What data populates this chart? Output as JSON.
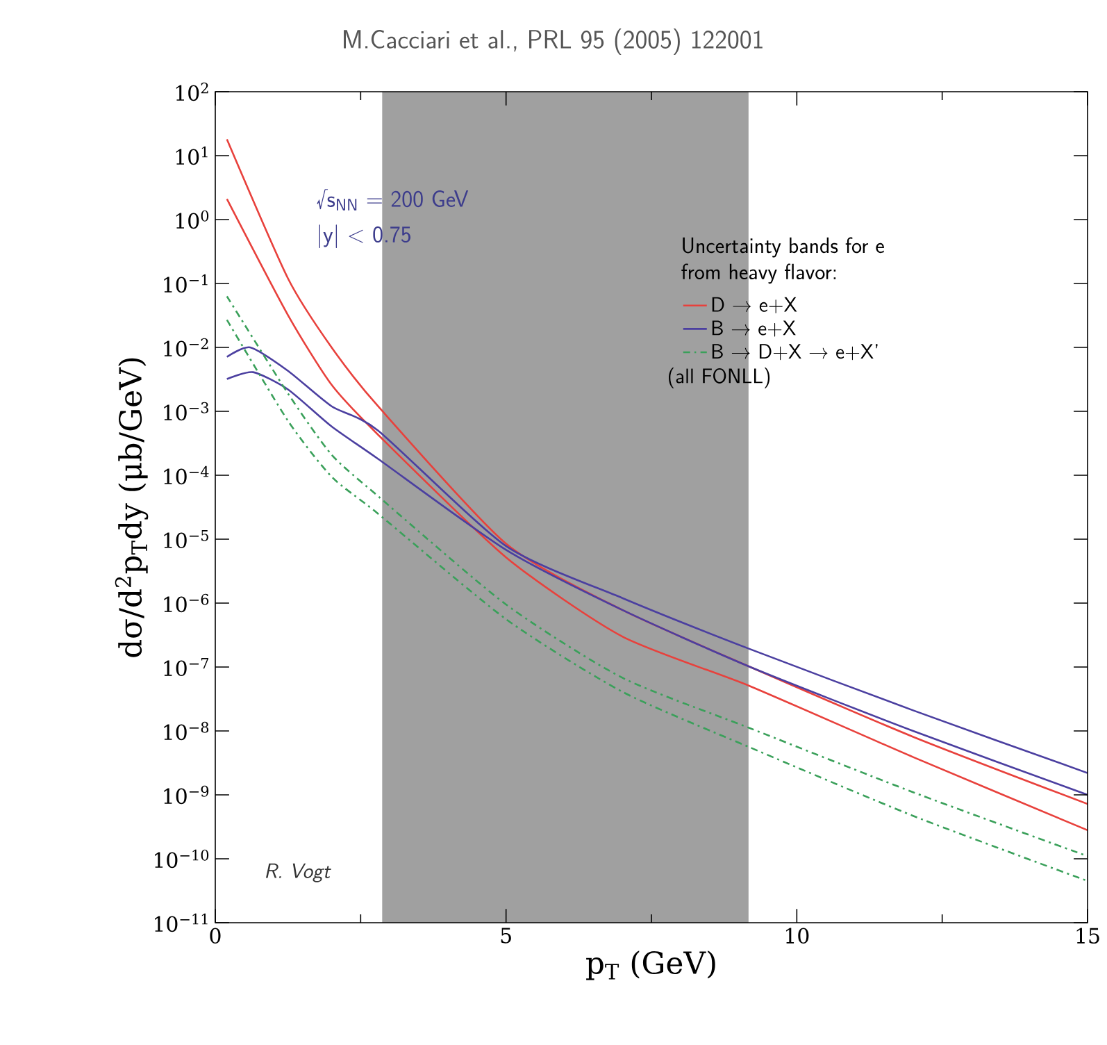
{
  "chart_data": {
    "type": "line",
    "title": "M.Cacciari et al., PRL 95 (2005) 122001",
    "xlabel": "p$_{T}$ (GeV)",
    "ylabel": "dσ/d$^{2}$p$_{T}$dy (μb/GeV)",
    "legend_title": "Uncertainty bands for e from heavy flavor:",
    "annotations": [
      "√s$_{NN}$ = 200 GeV",
      "|y| < 0.75",
      "R. Vogt",
      "(all FONLL)"
    ],
    "log": "y",
    "legend": "top right",
    "xlim": [
      0,
      15
    ],
    "xticks": [
      0,
      5,
      10,
      15
    ],
    "ylim": [
      1e-11,
      100
    ],
    "yticks": [
      {
        "value": 100,
        "label": "10$^{2}$"
      },
      {
        "value": 10,
        "label": "10$^{1}$"
      },
      {
        "value": 1,
        "label": "10$^{0}$"
      },
      {
        "value": 0.1,
        "label": "10$^{−1}$"
      },
      {
        "value": 0.01,
        "label": "10$^{−2}$"
      },
      {
        "value": 0.001,
        "label": "10$^{−3}$"
      },
      {
        "value": 0.0001,
        "label": "10$^{−4}$"
      },
      {
        "value": 1e-05,
        "label": "10$^{−5}$"
      },
      {
        "value": 1e-06,
        "label": "10$^{−6}$"
      },
      {
        "value": 1e-07,
        "label": "10$^{−7}$"
      },
      {
        "value": 1e-08,
        "label": "10$^{−8}$"
      },
      {
        "value": 1e-09,
        "label": "10$^{−9}$"
      },
      {
        "value": 1e-10,
        "label": "10$^{−10}$"
      },
      {
        "value": 1e-11,
        "label": "10$^{−11}$"
      }
    ],
    "bands": [
      {
        "axis": "x",
        "from": 2.87,
        "to": 9.17,
        "color": "#a0a0a0"
      }
    ],
    "series": [
      {
        "name": "D → e+X",
        "color": "#e8413c",
        "line_style": "solid",
        "x": [
          0.2,
          1.25,
          2,
          2.8,
          5,
          7,
          9.2,
          12,
          15
        ],
        "values": [
          18,
          0.12,
          0.01,
          0.0012,
          8.5e-06,
          7.8e-07,
          1e-07,
          8.1e-09,
          7.2e-10
        ]
      },
      {
        "color": "#e8413c",
        "line_style": "solid",
        "x": [
          0.2,
          1.25,
          2,
          2.8,
          5,
          7,
          9.2,
          12,
          15
        ],
        "values": [
          2.1,
          0.032,
          0.0026,
          0.00043,
          5.2e-06,
          3e-07,
          5e-08,
          3.9e-09,
          2.8e-10
        ]
      },
      {
        "name": "B → e+X",
        "color": "#4b3fa0",
        "line_style": "solid",
        "x": [
          0.2,
          0.6,
          1.25,
          2,
          2.8,
          5,
          7,
          9.2,
          12,
          15
        ],
        "values": [
          0.0071,
          0.01,
          0.0043,
          0.0012,
          0.0005,
          7.8e-06,
          1.2e-06,
          1.9e-07,
          2.1e-08,
          2.2e-09
        ]
      },
      {
        "color": "#4b3fa0",
        "line_style": "solid",
        "x": [
          0.2,
          0.65,
          1.25,
          2,
          2.8,
          5,
          7,
          9.2,
          12,
          15
        ],
        "values": [
          0.0032,
          0.0041,
          0.0022,
          0.00058,
          0.00018,
          6.8e-06,
          7.8e-07,
          1e-07,
          1e-08,
          1e-09
        ]
      },
      {
        "name": "B → D+X → e+X’",
        "color": "#3aa05a",
        "line_style": "dashdot",
        "x": [
          0.2,
          1.25,
          2,
          2.8,
          5,
          7,
          9.2,
          12,
          15
        ],
        "values": [
          0.063,
          0.0019,
          0.00021,
          4.7e-05,
          9.5e-07,
          6.8e-08,
          1.1e-08,
          1.1e-09,
          1.1e-10
        ]
      },
      {
        "color": "#3aa05a",
        "line_style": "dashdot",
        "x": [
          0.2,
          1.25,
          2,
          2.8,
          5,
          7,
          9.2,
          12,
          15
        ],
        "values": [
          0.027,
          0.00071,
          9.5e-05,
          2.5e-05,
          5.6e-07,
          4.1e-08,
          5.5e-09,
          4.7e-10,
          4.5e-11
        ]
      }
    ]
  }
}
